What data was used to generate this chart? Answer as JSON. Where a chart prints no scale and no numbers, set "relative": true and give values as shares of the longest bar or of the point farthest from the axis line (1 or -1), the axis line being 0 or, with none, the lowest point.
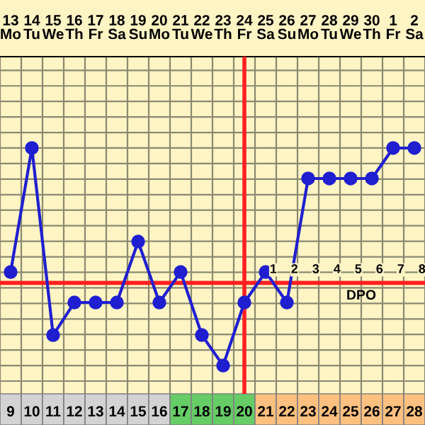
{
  "chart_data": {
    "type": "line",
    "relative": true,
    "categories": [
      "9",
      "10",
      "11",
      "12",
      "13",
      "14",
      "15",
      "16",
      "17",
      "18",
      "19",
      "20",
      "21",
      "22",
      "23",
      "24",
      "25",
      "26",
      "27",
      "28"
    ],
    "series": [
      {
        "color": "#1f1fd0",
        "values": [
          0.43,
          1,
          0.14,
          0.29,
          0.29,
          0.29,
          0.57,
          0.29,
          0.43,
          0.14,
          0,
          0.29,
          0.43,
          0.29,
          0.86,
          0.86,
          0.86,
          0.86,
          1,
          1
        ]
      }
    ],
    "marker": "circle",
    "line_style": "solid",
    "grid": true,
    "ref_lines": [
      {
        "axis": "x",
        "value": "20",
        "color": "#ff2020"
      },
      {
        "axis": "y",
        "value": 0.38,
        "color": "#ff2020"
      }
    ],
    "annotations": [
      "13\nMo",
      "14\nTu",
      "15\nWe",
      "16\nTh",
      "17\nFr",
      "18\nSa",
      "19\nSu",
      "20\nMo",
      "21\nTu",
      "22\nWe",
      "23\nTh",
      "24\nFr",
      "25\nSa",
      "26\nSu",
      "27\nMo",
      "28\nTu",
      "29\nWe",
      "30\nTh",
      "1\nFr",
      "2\nSa",
      "1",
      "2",
      "3",
      "4",
      "5",
      "6",
      "7",
      "8",
      "DPO"
    ]
  }
}
